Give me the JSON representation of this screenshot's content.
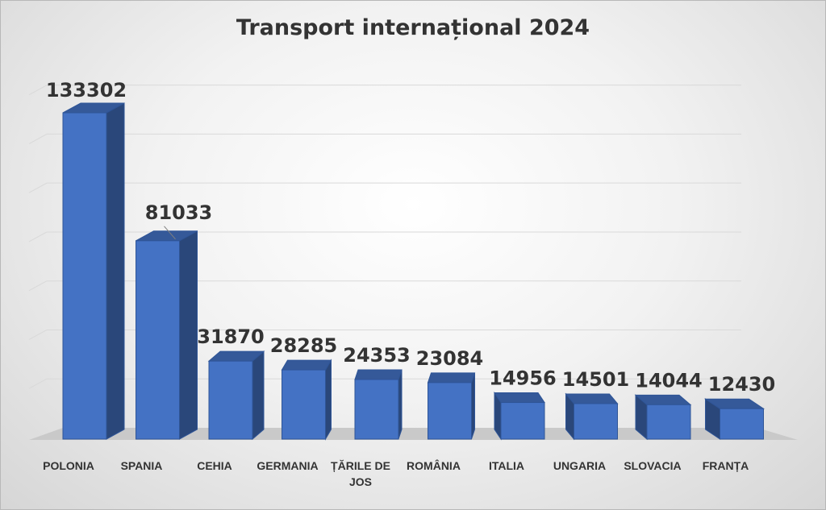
{
  "chart_data": {
    "type": "bar",
    "title": "Transport internațional 2024",
    "categories": [
      "POLONIA",
      "SPANIA",
      "CEHIA",
      "GERMANIA",
      "ȚĂRILE DE JOS",
      "ROMÂNIA",
      "ITALIA",
      "UNGARIA",
      "SLOVACIA",
      "FRANȚA"
    ],
    "category_lines": [
      [
        "POLONIA"
      ],
      [
        "SPANIA"
      ],
      [
        "CEHIA"
      ],
      [
        "GERMANIA"
      ],
      [
        "ȚĂRILE DE",
        "JOS"
      ],
      [
        "ROMÂNIA"
      ],
      [
        "ITALIA"
      ],
      [
        "UNGARIA"
      ],
      [
        "SLOVACIA"
      ],
      [
        "FRANȚA"
      ]
    ],
    "values": [
      133302,
      81033,
      31870,
      28285,
      24353,
      23084,
      14956,
      14501,
      14044,
      12430
    ],
    "ylim": [
      0,
      140000
    ],
    "grid": true,
    "data_labels": true,
    "legend": "none",
    "bar_color": "#4472C4"
  }
}
